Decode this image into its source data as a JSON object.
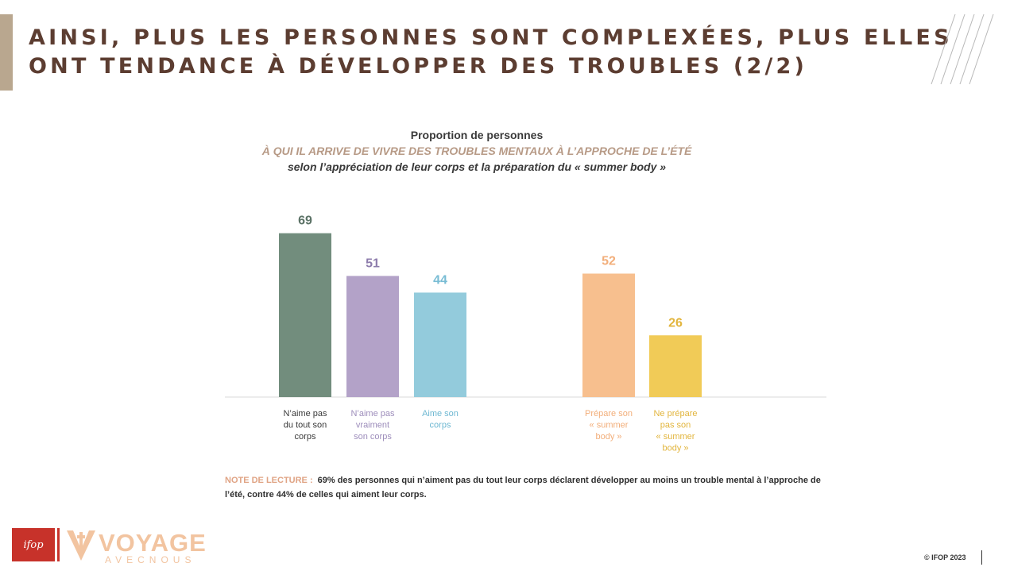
{
  "header": {
    "title_line1": "AINSI, PLUS LES PERSONNES SONT COMPLEXÉES, PLUS ELLES",
    "title_line2": "ONT TENDANCE À DÉVELOPPER DES TROUBLES (2/2)"
  },
  "subtitle": {
    "line1": "Proportion de personnes",
    "line2": "À QUI IL ARRIVE DE VIVRE DES TROUBLES MENTAUX À L’APPROCHE DE L’ÉTÉ",
    "line3": "selon l’appréciation de leur corps et la préparation du « summer body »"
  },
  "chart_data": {
    "type": "bar",
    "ylim": [
      0,
      100
    ],
    "bars": [
      {
        "group": 1,
        "label_lines": [
          "N’aime pas",
          "du tout son",
          "corps"
        ],
        "value": 69,
        "color": "#728d7d",
        "value_color": "#5b7266",
        "label_color": "#3a3a3a"
      },
      {
        "group": 1,
        "label_lines": [
          "N’aime pas",
          "vraiment",
          "son corps"
        ],
        "value": 51,
        "color": "#b3a2c8",
        "value_color": "#8d7cac",
        "label_color": "#9d8dbb"
      },
      {
        "group": 1,
        "label_lines": [
          "Aime son",
          "corps"
        ],
        "value": 44,
        "color": "#93cbdc",
        "value_color": "#78bcd4",
        "label_color": "#6fb8d2"
      },
      {
        "group": 2,
        "label_lines": [
          "Prépare son",
          "« summer",
          "body »"
        ],
        "value": 52,
        "color": "#f7bf8e",
        "value_color": "#f2ae7a",
        "label_color": "#f2ae7a"
      },
      {
        "group": 2,
        "label_lines": [
          "Ne prépare",
          "pas son",
          "« summer",
          "body »"
        ],
        "value": 26,
        "color": "#f1cb57",
        "value_color": "#e2b53d",
        "label_color": "#e2b53d"
      }
    ]
  },
  "note": {
    "label": "NOTE DE LECTURE :",
    "text": "69% des personnes qui n’aiment pas du tout leur corps déclarent développer au moins un trouble mental à l’approche de l’été, contre 44% de celles qui aiment leur corps."
  },
  "footer": {
    "ifop_logo": "ifop",
    "voyage_main": "VOYAGE",
    "voyage_sub": "AVECNOUS",
    "copyright": "© IFOP 2023"
  },
  "colors": {
    "title": "#5c3d31",
    "accent_bar": "#b9a78f",
    "note_label": "#e0a485",
    "ifop_red": "#c7322a"
  }
}
